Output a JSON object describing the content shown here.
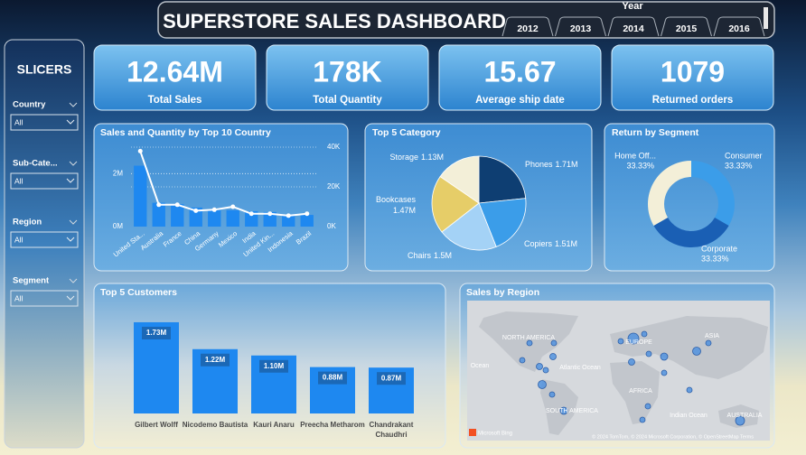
{
  "header": {
    "title": "SUPERSTORE SALES DASHBOARD",
    "year_label": "Year",
    "years": [
      "2012",
      "2013",
      "2014",
      "2015",
      "2016"
    ]
  },
  "slicers": {
    "title": "SLICERS",
    "filters": [
      {
        "label": "Country",
        "value": "All"
      },
      {
        "label": "Sub-Cate...",
        "value": "All"
      },
      {
        "label": "Region",
        "value": "All"
      },
      {
        "label": "Segment",
        "value": "All"
      }
    ]
  },
  "kpis": [
    {
      "value": "12.64M",
      "label": "Total Sales"
    },
    {
      "value": "178K",
      "label": "Total Quantity"
    },
    {
      "value": "15.67",
      "label": "Average ship date"
    },
    {
      "value": "1079",
      "label": "Returned orders"
    }
  ],
  "country_chart": {
    "type": "bar_line",
    "title": "Sales and Quantity by Top 10 Country",
    "categories": [
      "United Sta...",
      "Australia",
      "France",
      "China",
      "Germany",
      "Mexico",
      "India",
      "United Kin...",
      "Indonesia",
      "Brazil"
    ],
    "series": [
      {
        "color": "#1e88f0",
        "values": [
          2300000,
          900000,
          850000,
          720000,
          620000,
          620000,
          580000,
          550000,
          440000,
          440000
        ]
      },
      {
        "color": "#ffffff",
        "axis": "y2",
        "values": [
          38000,
          11000,
          11000,
          8000,
          8500,
          10000,
          6500,
          6500,
          5500,
          6500
        ]
      }
    ],
    "ylim": [
      0,
      3000000
    ],
    "yticks": [
      {
        "value": 0,
        "label": "0M"
      },
      {
        "value": 2000000,
        "label": "2M"
      }
    ],
    "y2lim": [
      0,
      40000
    ],
    "y2ticks": [
      {
        "value": 0,
        "label": "0K"
      },
      {
        "value": 20000,
        "label": "20K"
      },
      {
        "value": 40000,
        "label": "40K"
      }
    ],
    "grid": true
  },
  "category_chart": {
    "type": "pie",
    "title": "Top 5 Category",
    "categories": [
      "Phones",
      "Copiers",
      "Chairs",
      "Bookcases",
      "Storage"
    ],
    "values": [
      1.71,
      1.51,
      1.5,
      1.47,
      1.13
    ],
    "value_labels": [
      "1.71M",
      "1.51M",
      "1.5M",
      "1.47M",
      "1.13M"
    ],
    "colors": [
      "#0e3e72",
      "#3b9de9",
      "#a4d2f6",
      "#e6cd68",
      "#f3efd8"
    ]
  },
  "segment_chart": {
    "type": "donut",
    "title": "Return by Segment",
    "categories": [
      "Consumer",
      "Corporate",
      "Home Off..."
    ],
    "values": [
      33.33,
      33.33,
      33.33
    ],
    "value_labels": [
      "33.33%",
      "33.33%",
      "33.33%"
    ],
    "colors": [
      "#3b9de9",
      "#1a5fb4",
      "#f3efd8"
    ]
  },
  "customers_chart": {
    "type": "bar",
    "title": "Top 5 Customers",
    "categories": [
      "Gilbert Wolff",
      "Nicodemo Bautista",
      "Kauri Anaru",
      "Preecha Metharom",
      "Chandrakant Chaudhri"
    ],
    "values": [
      1.73,
      1.22,
      1.1,
      0.88,
      0.87
    ],
    "value_labels": [
      "1.73M",
      "1.22M",
      "1.10M",
      "0.88M",
      "0.87M"
    ],
    "color": "#1e88f0"
  },
  "map": {
    "title": "Sales by Region",
    "labels": [
      "NORTH AMERICA",
      "EUROPE",
      "ASIA",
      "Ocean",
      "Atlantic Ocean",
      "AFRICA",
      "SOUTH AMERICA",
      "Indian Ocean",
      "AUSTRALIA"
    ],
    "logo": "Microsoft Bing",
    "attribution": "© 2024 TomTom, © 2024 Microsoft Corporation, © OpenStreetMap Terms"
  }
}
